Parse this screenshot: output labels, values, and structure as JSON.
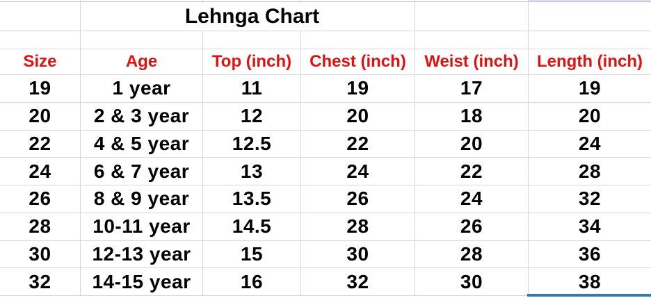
{
  "chart_data": {
    "type": "table",
    "title": "Lehnga Chart",
    "columns": [
      "Size",
      "Age",
      "Top (inch)",
      "Chest (inch)",
      "Weist (inch)",
      "Length (inch)"
    ],
    "rows": [
      [
        "19",
        "1 year",
        "11",
        "19",
        "17",
        "19"
      ],
      [
        "20",
        "2 & 3 year",
        "12",
        "20",
        "18",
        "20"
      ],
      [
        "22",
        "4 & 5 year",
        "12.5",
        "22",
        "20",
        "24"
      ],
      [
        "24",
        "6 & 7 year",
        "13",
        "24",
        "22",
        "28"
      ],
      [
        "26",
        "8 & 9 year",
        "13.5",
        "26",
        "24",
        "32"
      ],
      [
        "28",
        "10-11 year",
        "14.5",
        "28",
        "26",
        "34"
      ],
      [
        "30",
        "12-13 year",
        "15",
        "30",
        "28",
        "36"
      ],
      [
        "32",
        "14-15 year",
        "16",
        "32",
        "30",
        "38"
      ]
    ]
  },
  "colors": {
    "header_text": "#e01111",
    "body_text": "#000000",
    "gridline": "#d6d6d6",
    "top_strip_line": "#c0c0c0",
    "top_strip_highlight": "#dce1f0",
    "selection_bar_blue": "#3577b8"
  }
}
